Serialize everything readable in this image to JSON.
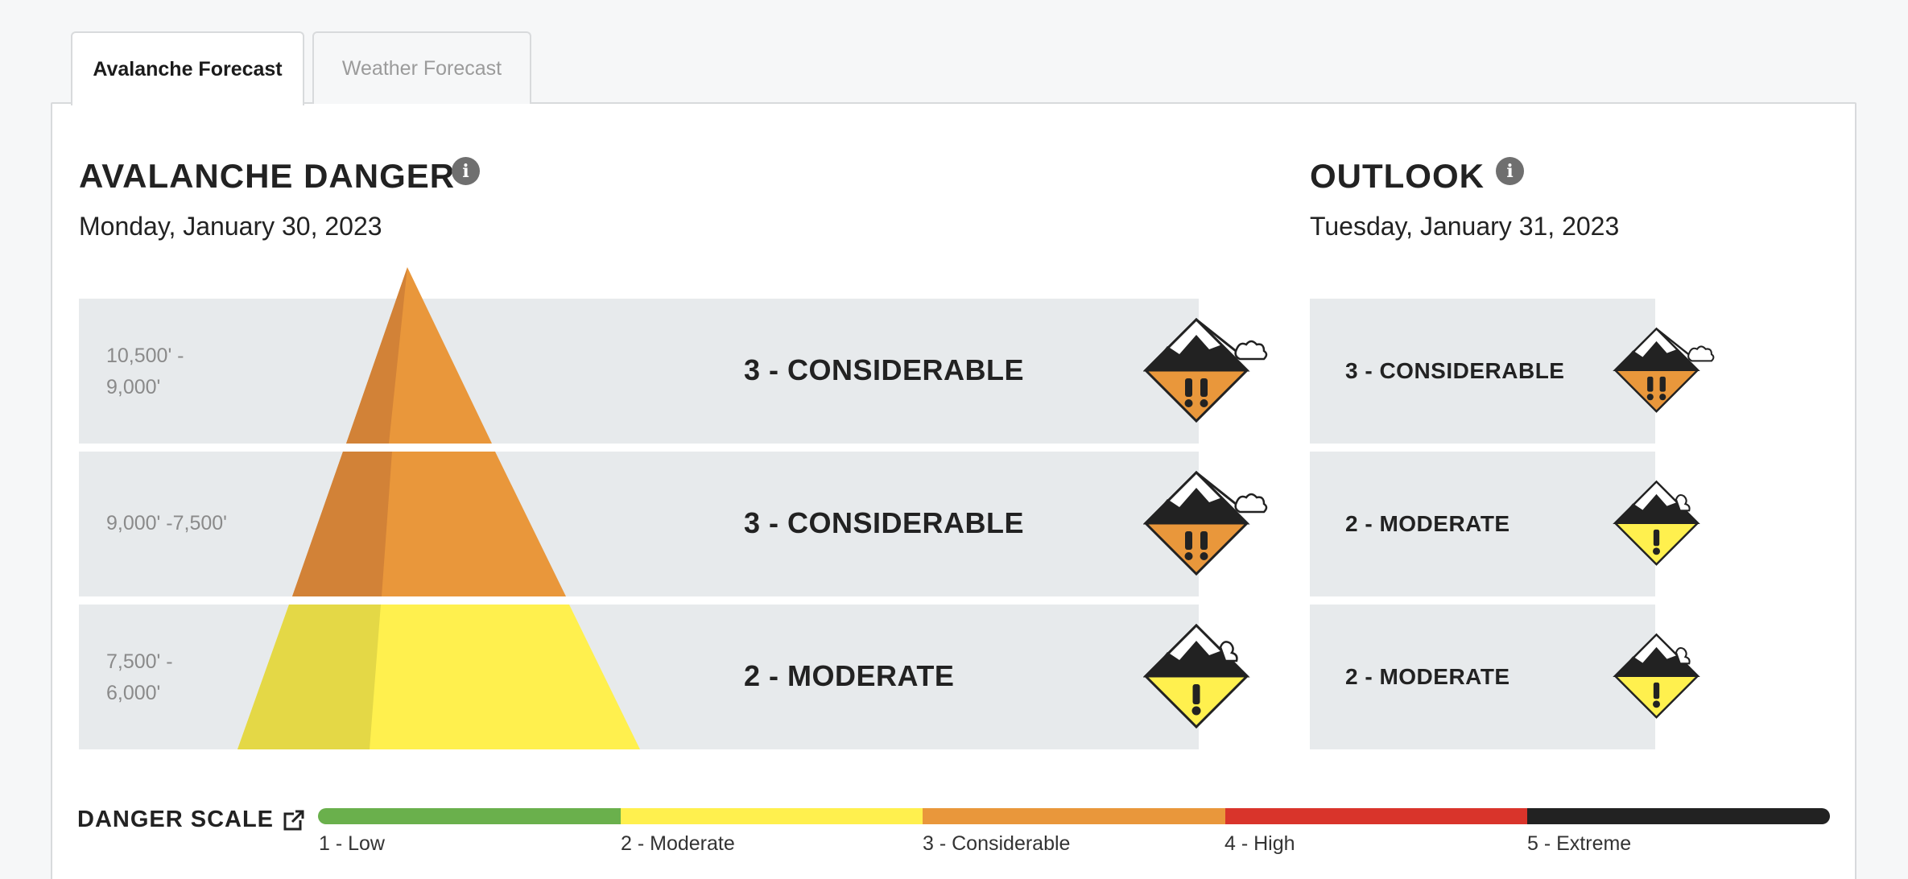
{
  "tabs": [
    {
      "label": "Avalanche Forecast",
      "active": true
    },
    {
      "label": "Weather Forecast",
      "active": false
    }
  ],
  "danger": {
    "title": "AVALANCHE DANGER",
    "date": "Monday, January 30, 2023",
    "rows": [
      {
        "elevation": "10,500' - 9,000'",
        "rating": "3 - CONSIDERABLE",
        "level": 3
      },
      {
        "elevation": "9,000' -7,500'",
        "rating": "3 - CONSIDERABLE",
        "level": 3
      },
      {
        "elevation": "7,500' - 6,000'",
        "rating": "2 - MODERATE",
        "level": 2
      }
    ]
  },
  "outlook": {
    "title": "OUTLOOK",
    "date": "Tuesday, January 31, 2023",
    "rows": [
      {
        "rating": "3 - CONSIDERABLE",
        "level": 3
      },
      {
        "rating": "2 - MODERATE",
        "level": 2
      },
      {
        "rating": "2 - MODERATE",
        "level": 2
      }
    ]
  },
  "scale": {
    "title": "DANGER SCALE",
    "levels": [
      {
        "label": "1 - Low",
        "color": "#6ab04c"
      },
      {
        "label": "2 - Moderate",
        "color": "#fff04e"
      },
      {
        "label": "3 - Considerable",
        "color": "#e9973b"
      },
      {
        "label": "4 - High",
        "color": "#d9342b"
      },
      {
        "label": "5 - Extreme",
        "color": "#222222"
      }
    ]
  },
  "icons": {
    "info": "info-icon",
    "external_link": "external-link-icon",
    "danger": "avalanche-danger-icon"
  }
}
